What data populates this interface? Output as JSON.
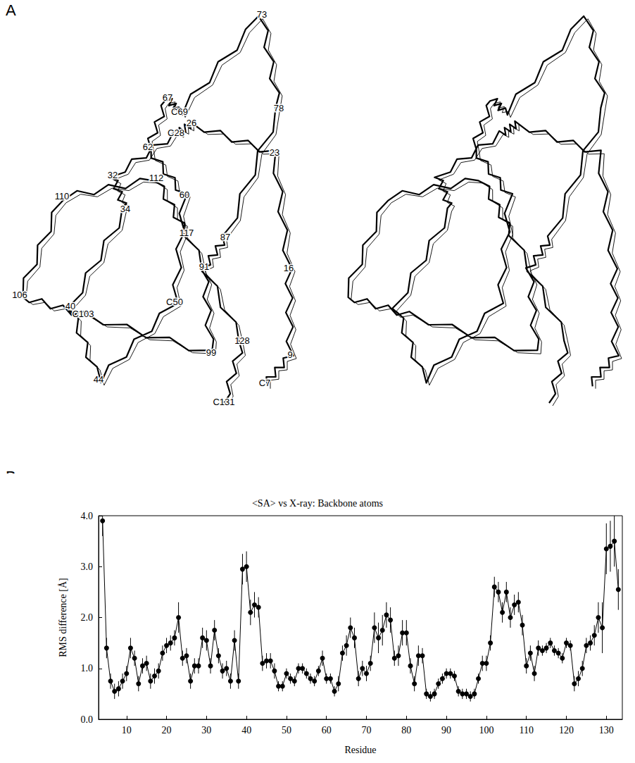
{
  "panel_a": {
    "letter": "A",
    "labels": [
      "C7",
      "9",
      "16",
      "23",
      "26",
      "C28",
      "32",
      "34",
      "40",
      "44",
      "C50",
      "60",
      "62",
      "67",
      "C69",
      "73",
      "78",
      "87",
      "91",
      "99",
      "C103",
      "106",
      "110",
      "112",
      "117",
      "128",
      "C131"
    ]
  },
  "chart_data": {
    "type": "line",
    "title": "<SA> vs X-ray: Backbone atoms",
    "annotations": [
      "B"
    ],
    "x_label": "Residue",
    "y_label": "RMS difference [Å]",
    "x": [
      4,
      5,
      6,
      7,
      8,
      9,
      10,
      11,
      12,
      13,
      14,
      15,
      16,
      17,
      18,
      19,
      20,
      21,
      22,
      23,
      24,
      25,
      26,
      27,
      28,
      29,
      30,
      31,
      32,
      33,
      34,
      35,
      36,
      37,
      38,
      39,
      40,
      41,
      42,
      43,
      44,
      45,
      46,
      47,
      48,
      49,
      50,
      51,
      52,
      53,
      54,
      55,
      56,
      57,
      58,
      59,
      60,
      61,
      62,
      63,
      64,
      65,
      66,
      67,
      68,
      69,
      70,
      71,
      72,
      73,
      74,
      75,
      76,
      77,
      78,
      79,
      80,
      81,
      82,
      83,
      84,
      85,
      86,
      87,
      88,
      89,
      90,
      91,
      92,
      93,
      94,
      95,
      96,
      97,
      98,
      99,
      100,
      101,
      102,
      103,
      104,
      105,
      106,
      107,
      108,
      109,
      110,
      111,
      112,
      113,
      114,
      115,
      116,
      117,
      118,
      119,
      120,
      121,
      122,
      123,
      124,
      125,
      126,
      127,
      128,
      129,
      130,
      131,
      132,
      133
    ],
    "values": [
      3.9,
      1.4,
      0.75,
      0.55,
      0.6,
      0.75,
      0.9,
      1.4,
      1.2,
      0.7,
      1.05,
      1.1,
      0.75,
      0.85,
      0.95,
      1.3,
      1.45,
      1.5,
      1.6,
      2.0,
      1.2,
      1.25,
      0.75,
      1.05,
      1.05,
      1.6,
      1.55,
      1.05,
      1.75,
      1.25,
      0.95,
      1.0,
      0.75,
      1.55,
      0.75,
      2.95,
      3.0,
      2.1,
      2.25,
      2.2,
      1.1,
      1.15,
      1.15,
      0.95,
      0.65,
      0.65,
      0.9,
      0.8,
      0.75,
      1.0,
      1.0,
      0.9,
      0.8,
      0.75,
      0.95,
      1.2,
      0.8,
      0.8,
      0.55,
      0.7,
      1.3,
      1.45,
      1.8,
      1.6,
      0.8,
      1.0,
      0.9,
      1.1,
      1.8,
      1.6,
      1.75,
      2.05,
      1.95,
      1.2,
      1.25,
      1.7,
      1.7,
      1.05,
      0.7,
      1.25,
      1.25,
      0.5,
      0.45,
      0.5,
      0.7,
      0.8,
      0.9,
      0.9,
      0.85,
      0.55,
      0.5,
      0.5,
      0.45,
      0.5,
      0.8,
      1.1,
      1.1,
      1.5,
      2.6,
      2.5,
      2.1,
      2.5,
      2.0,
      2.25,
      2.3,
      1.85,
      1.05,
      1.3,
      0.9,
      1.4,
      1.35,
      1.4,
      1.5,
      1.35,
      1.3,
      1.2,
      1.5,
      1.45,
      0.7,
      0.8,
      1.0,
      1.45,
      1.5,
      1.65,
      2.0,
      1.8,
      3.35,
      3.4,
      3.5,
      2.55
    ],
    "errors": [
      0.3,
      0.2,
      0.15,
      0.15,
      0.15,
      0.15,
      0.15,
      0.2,
      0.15,
      0.15,
      0.15,
      0.15,
      0.15,
      0.15,
      0.15,
      0.15,
      0.15,
      0.15,
      0.15,
      0.3,
      0.15,
      0.15,
      0.15,
      0.15,
      0.15,
      0.2,
      0.2,
      0.15,
      0.2,
      0.15,
      0.15,
      0.15,
      0.15,
      0.2,
      0.15,
      0.3,
      0.3,
      0.25,
      0.25,
      0.2,
      0.15,
      0.15,
      0.15,
      0.15,
      0.1,
      0.1,
      0.1,
      0.1,
      0.1,
      0.1,
      0.1,
      0.1,
      0.1,
      0.1,
      0.1,
      0.15,
      0.1,
      0.1,
      0.1,
      0.15,
      0.15,
      0.2,
      0.2,
      0.2,
      0.15,
      0.15,
      0.15,
      0.15,
      0.3,
      0.3,
      0.3,
      0.25,
      0.25,
      0.15,
      0.2,
      0.25,
      0.25,
      0.15,
      0.15,
      0.2,
      0.15,
      0.1,
      0.1,
      0.1,
      0.1,
      0.1,
      0.1,
      0.1,
      0.1,
      0.1,
      0.1,
      0.1,
      0.1,
      0.1,
      0.1,
      0.15,
      0.15,
      0.15,
      0.2,
      0.2,
      0.2,
      0.2,
      0.2,
      0.2,
      0.2,
      0.2,
      0.15,
      0.15,
      0.15,
      0.15,
      0.1,
      0.1,
      0.1,
      0.1,
      0.1,
      0.1,
      0.1,
      0.1,
      0.15,
      0.15,
      0.15,
      0.15,
      0.15,
      0.2,
      0.3,
      0.5,
      0.5,
      0.5,
      0.5,
      0.4
    ],
    "color": "#000000",
    "marker": "circle",
    "xlim": [
      3,
      134
    ],
    "xticks": [
      10,
      20,
      30,
      40,
      50,
      60,
      70,
      80,
      90,
      100,
      110,
      120,
      130
    ],
    "ylim": [
      0,
      4
    ],
    "yticks": [
      {
        "value": 0,
        "label": "0.0"
      },
      {
        "value": 1,
        "label": "1.0"
      },
      {
        "value": 2,
        "label": "2.0"
      },
      {
        "value": 3,
        "label": "3.0"
      },
      {
        "value": 4,
        "label": "4.0"
      }
    ],
    "grid": false
  }
}
